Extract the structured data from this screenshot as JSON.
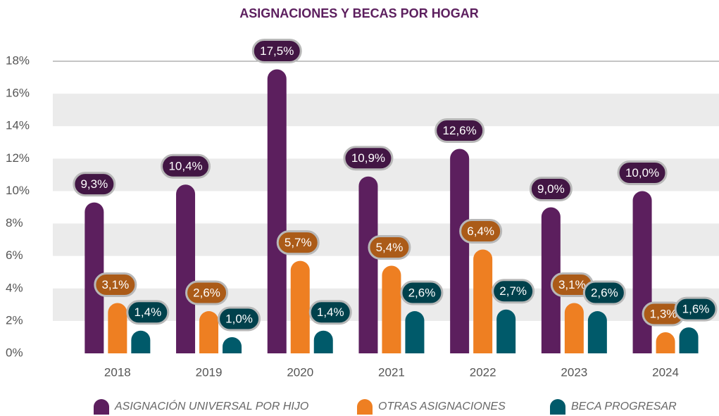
{
  "chart_data": {
    "type": "bar",
    "title": "ASIGNACIONES Y BECAS POR HOGAR",
    "categories": [
      "2018",
      "2019",
      "2020",
      "2021",
      "2022",
      "2023",
      "2024"
    ],
    "series": [
      {
        "name": "ASIGNACIÓN UNIVERSAL POR HIJO",
        "color": "#5c1f5e",
        "values": [
          9.3,
          10.4,
          17.5,
          10.9,
          12.6,
          9.0,
          10.0
        ],
        "value_labels": [
          "9,3%",
          "10,4%",
          "17,5%",
          "10,9%",
          "12,6%",
          "9,0%",
          "10,0%"
        ]
      },
      {
        "name": "OTRAS ASIGNACIONES",
        "color": "#ee7f22",
        "values": [
          3.1,
          2.6,
          5.7,
          5.4,
          6.4,
          3.1,
          1.3
        ],
        "value_labels": [
          "3,1%",
          "2,6%",
          "5,7%",
          "5,4%",
          "6,4%",
          "3,1%",
          "1,3%"
        ]
      },
      {
        "name": "BECA PROGRESAR",
        "color": "#005a6a",
        "values": [
          1.4,
          1.0,
          1.4,
          2.6,
          2.7,
          2.6,
          1.6
        ],
        "value_labels": [
          "1,4%",
          "1,0%",
          "1,4%",
          "2,6%",
          "2,7%",
          "2,6%",
          "1,6%"
        ]
      }
    ],
    "ylim": [
      0,
      18
    ],
    "yticks": [
      {
        "value": 0,
        "label": "0%"
      },
      {
        "value": 2,
        "label": "2%"
      },
      {
        "value": 4,
        "label": "4%"
      },
      {
        "value": 6,
        "label": "6%"
      },
      {
        "value": 8,
        "label": "8%"
      },
      {
        "value": 10,
        "label": "10%"
      },
      {
        "value": 12,
        "label": "12%"
      },
      {
        "value": 14,
        "label": "14%"
      },
      {
        "value": 16,
        "label": "16%"
      },
      {
        "value": 18,
        "label": "18%"
      }
    ],
    "grid": true
  }
}
